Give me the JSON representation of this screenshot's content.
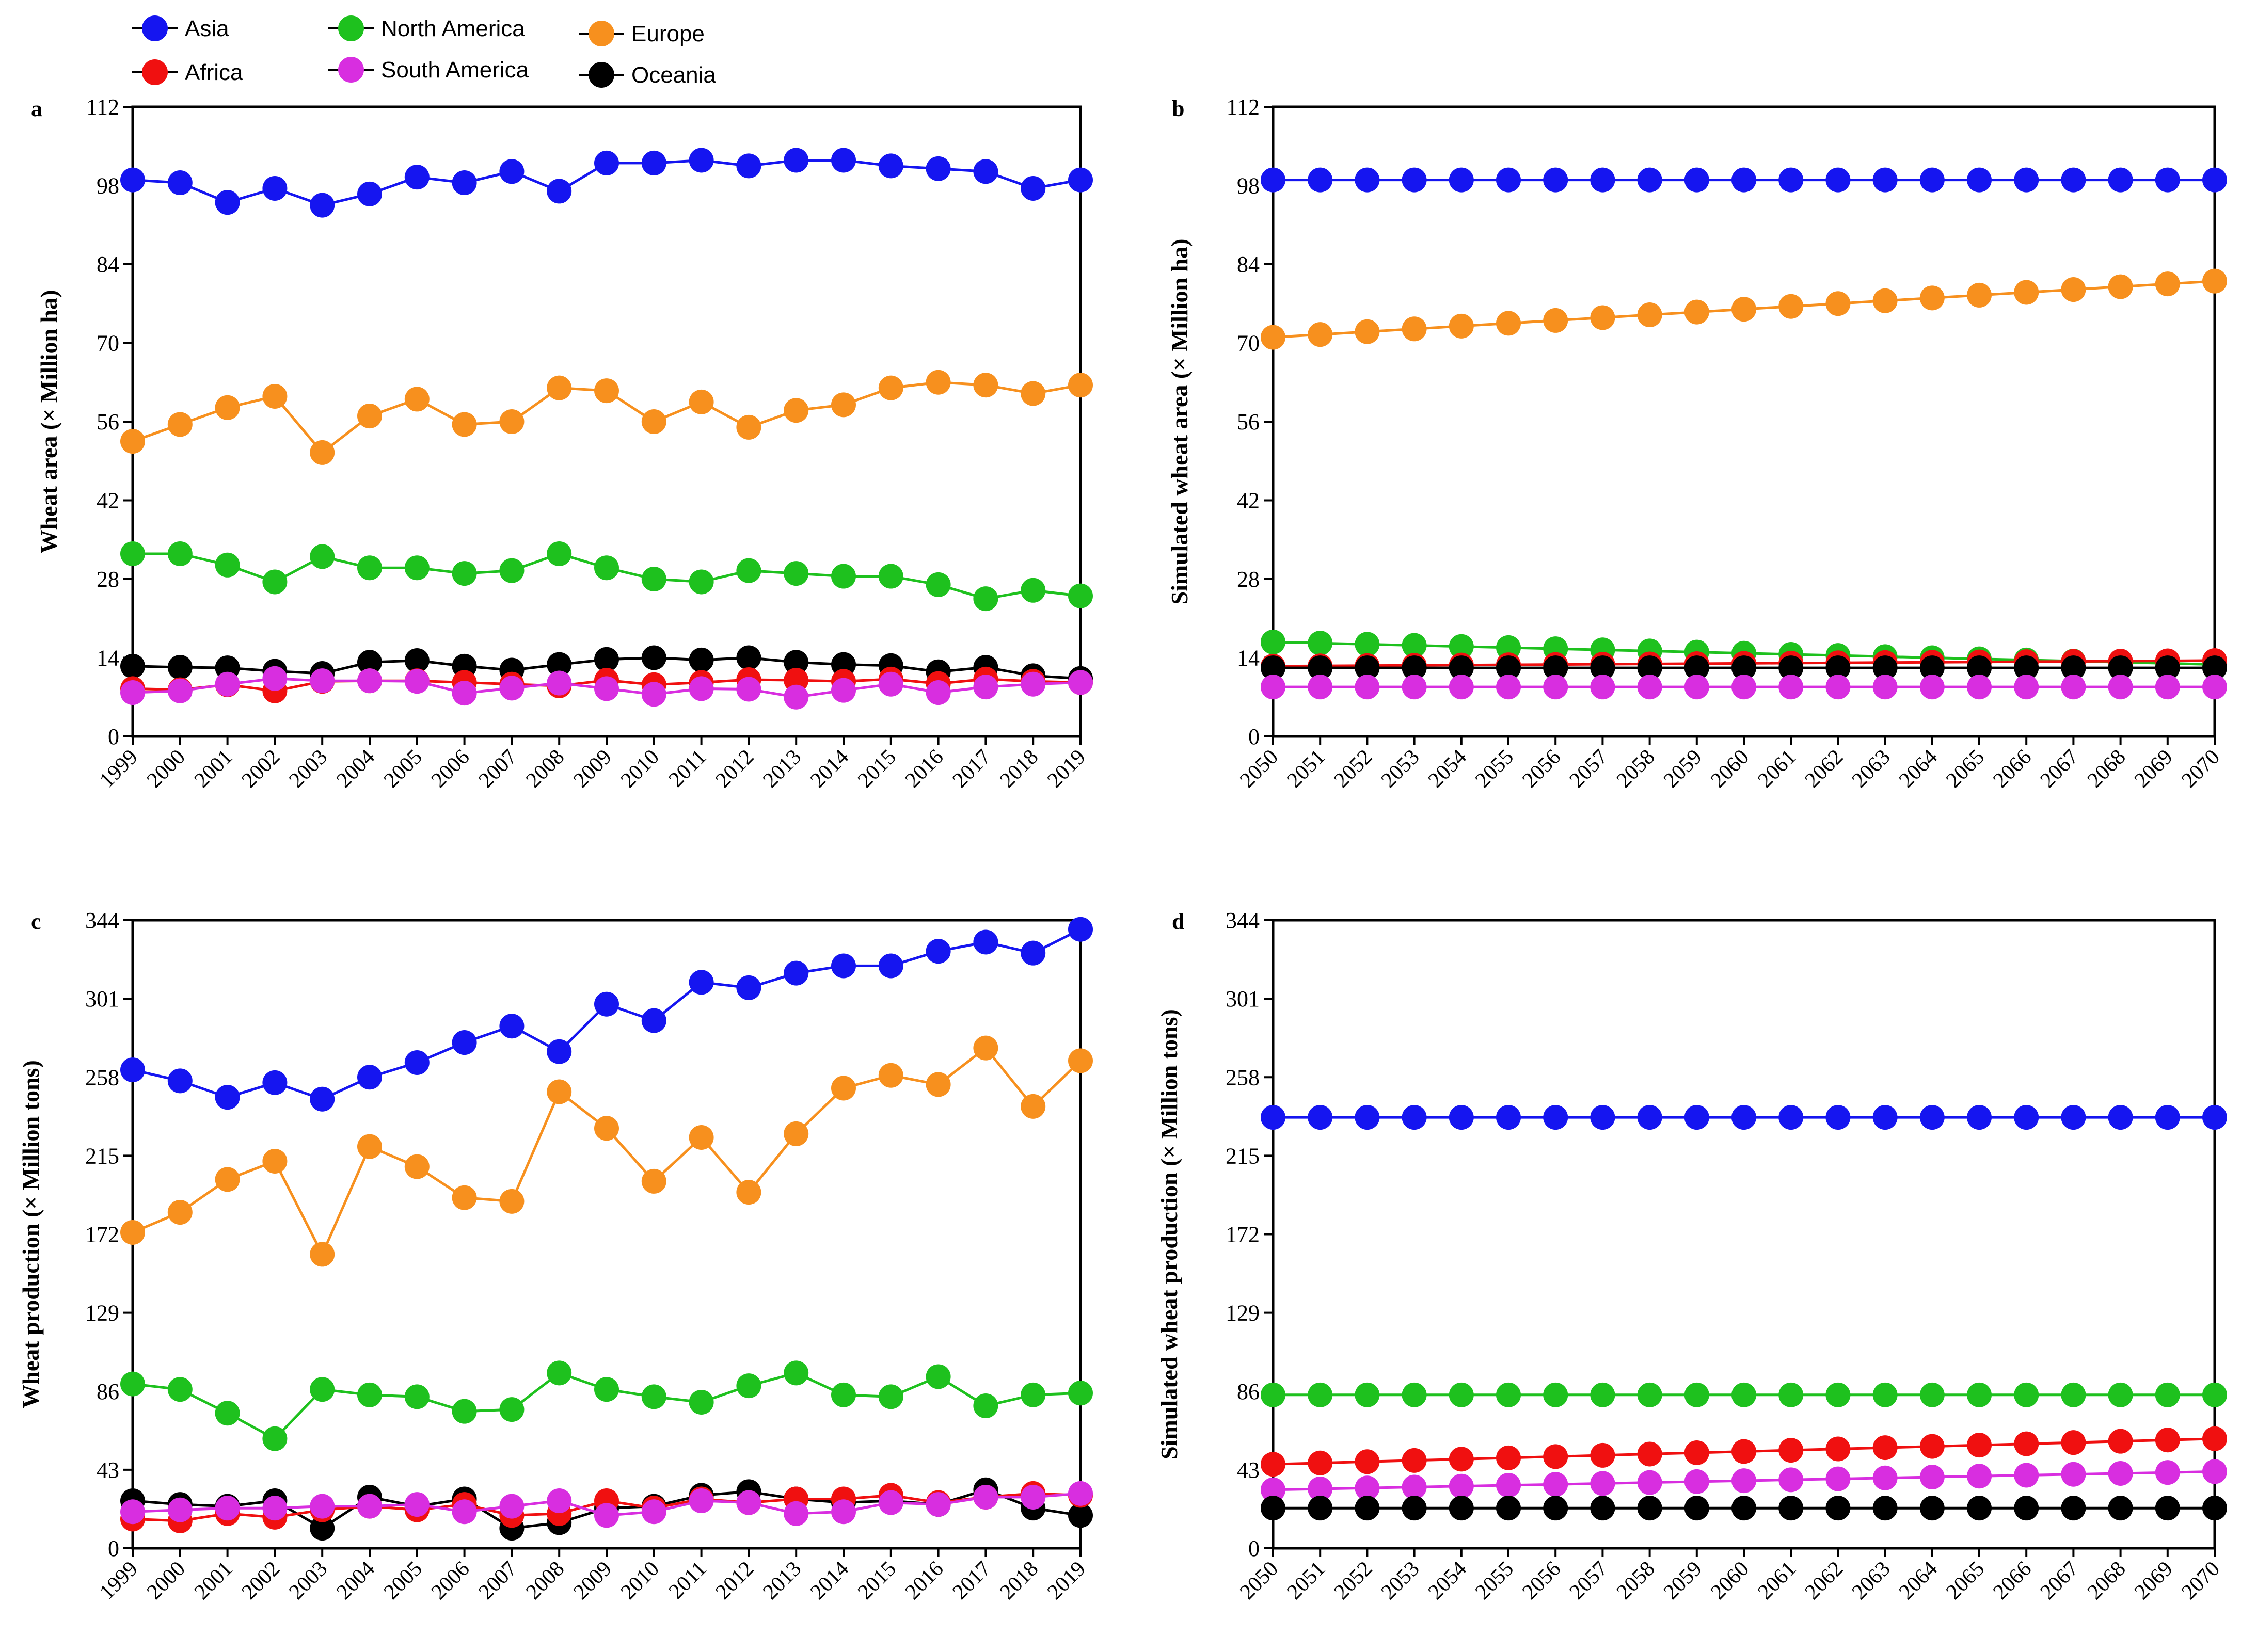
{
  "legend": [
    {
      "name": "Asia",
      "color": "#1515f0"
    },
    {
      "name": "Africa",
      "color": "#f01010"
    },
    {
      "name": "North America",
      "color": "#1ec11e"
    },
    {
      "name": "South America",
      "color": "#d82ee0"
    },
    {
      "name": "Europe",
      "color": "#f7901e"
    },
    {
      "name": "Oceania",
      "color": "#000000"
    }
  ],
  "chart_data": [
    {
      "type": "line",
      "panel": "a",
      "title": "",
      "xlabel": "",
      "ylabel": "Wheat  area (× Million ha)",
      "ylim": [
        0,
        112
      ],
      "yticks": [
        0,
        14,
        28,
        42,
        56,
        70,
        84,
        98,
        112
      ],
      "categories": [
        "1999",
        "2000",
        "2001",
        "2002",
        "2003",
        "2004",
        "2005",
        "2006",
        "2007",
        "2008",
        "2009",
        "2010",
        "2011",
        "2012",
        "2013",
        "2014",
        "2015",
        "2016",
        "2017",
        "2018",
        "2019"
      ],
      "series": [
        {
          "name": "Asia",
          "values": [
            99,
            98.5,
            95,
            97.5,
            94.5,
            96.5,
            99.5,
            98.5,
            100.5,
            97,
            102,
            102,
            102.5,
            101.5,
            102.5,
            102.5,
            101.5,
            101,
            100.5,
            97.5,
            99
          ]
        },
        {
          "name": "Europe",
          "values": [
            52.5,
            55.5,
            58.5,
            60.5,
            50.5,
            57,
            60,
            55.5,
            56,
            62,
            61.5,
            56,
            59.5,
            55,
            58,
            59,
            62,
            63,
            62.5,
            61,
            62.5
          ]
        },
        {
          "name": "North America",
          "values": [
            32.5,
            32.5,
            30.5,
            27.5,
            32,
            30,
            30,
            29,
            29.5,
            32.5,
            30,
            28,
            27.5,
            29.5,
            29,
            28.5,
            28.5,
            27,
            24.5,
            26,
            25
          ]
        },
        {
          "name": "Oceania",
          "values": [
            12.5,
            12.3,
            12.2,
            11.6,
            11.2,
            13.2,
            13.5,
            12.5,
            11.8,
            12.8,
            13.7,
            14,
            13.6,
            14,
            13.2,
            12.8,
            12.6,
            11.5,
            12.3,
            10.8,
            10.3
          ]
        },
        {
          "name": "Africa",
          "values": [
            8.5,
            8.3,
            9.2,
            8.1,
            9.8,
            9.9,
            9.9,
            9.6,
            9.3,
            9,
            10,
            9.2,
            9.6,
            10.1,
            10,
            9.8,
            10.2,
            9.4,
            10.2,
            9.8,
            9.6
          ]
        },
        {
          "name": "South America",
          "values": [
            7.8,
            8.1,
            9.3,
            10.3,
            9.9,
            9.9,
            9.8,
            7.7,
            8.6,
            9.5,
            8.5,
            7.5,
            8.5,
            8.4,
            7,
            8.2,
            9.3,
            7.8,
            8.8,
            9.3,
            9.6
          ]
        }
      ]
    },
    {
      "type": "line",
      "panel": "b",
      "title": "",
      "xlabel": "",
      "ylabel": "Simulated wheat  area (× Million ha)",
      "ylim": [
        0,
        112
      ],
      "yticks": [
        0,
        14,
        28,
        42,
        56,
        70,
        84,
        98,
        112
      ],
      "categories": [
        "2050",
        "2051",
        "2052",
        "2053",
        "2054",
        "2055",
        "2056",
        "2057",
        "2058",
        "2059",
        "2060",
        "2061",
        "2062",
        "2063",
        "2064",
        "2065",
        "2066",
        "2067",
        "2068",
        "2069",
        "2070"
      ],
      "series": [
        {
          "name": "Asia",
          "values": [
            99,
            99,
            99,
            99,
            99,
            99,
            99,
            99,
            99,
            99,
            99,
            99,
            99,
            99,
            99,
            99,
            99,
            99,
            99,
            99,
            99
          ]
        },
        {
          "name": "Europe",
          "values": [
            71,
            71.5,
            72,
            72.5,
            73,
            73.5,
            74,
            74.5,
            75,
            75.5,
            76,
            76.5,
            77,
            77.5,
            78,
            78.5,
            79,
            79.5,
            80,
            80.5,
            81
          ]
        },
        {
          "name": "North America",
          "values": [
            16.8,
            16.6,
            16.4,
            16.2,
            16,
            15.8,
            15.6,
            15.4,
            15.2,
            15,
            14.8,
            14.6,
            14.4,
            14.2,
            14,
            13.8,
            13.6,
            13.4,
            13.2,
            13,
            12.8
          ]
        },
        {
          "name": "Africa",
          "values": [
            12.5,
            12.55,
            12.6,
            12.65,
            12.7,
            12.75,
            12.8,
            12.85,
            12.9,
            12.95,
            13,
            13.05,
            13.1,
            13.15,
            13.2,
            13.25,
            13.3,
            13.35,
            13.4,
            13.45,
            13.5
          ]
        },
        {
          "name": "Oceania",
          "values": [
            12.2,
            12.2,
            12.2,
            12.2,
            12.2,
            12.2,
            12.2,
            12.2,
            12.2,
            12.2,
            12.2,
            12.2,
            12.2,
            12.2,
            12.2,
            12.2,
            12.2,
            12.2,
            12.2,
            12.2,
            12.2
          ]
        },
        {
          "name": "South America",
          "values": [
            8.8,
            8.8,
            8.8,
            8.8,
            8.8,
            8.8,
            8.8,
            8.8,
            8.8,
            8.8,
            8.8,
            8.8,
            8.8,
            8.8,
            8.8,
            8.8,
            8.8,
            8.8,
            8.8,
            8.8,
            8.8
          ]
        }
      ]
    },
    {
      "type": "line",
      "panel": "c",
      "title": "",
      "xlabel": "",
      "ylabel": "Wheat production (× Million tons)",
      "ylim": [
        0,
        344
      ],
      "yticks": [
        0,
        43,
        86,
        129,
        172,
        215,
        258,
        301,
        344
      ],
      "categories": [
        "1999",
        "2000",
        "2001",
        "2002",
        "2003",
        "2004",
        "2005",
        "2006",
        "2007",
        "2008",
        "2009",
        "2010",
        "2011",
        "2012",
        "2013",
        "2014",
        "2015",
        "2016",
        "2017",
        "2018",
        "2019"
      ],
      "series": [
        {
          "name": "Asia",
          "values": [
            262,
            256,
            247,
            255,
            246,
            258,
            266,
            277,
            286,
            272,
            298,
            289,
            310,
            307,
            315,
            319,
            319,
            327,
            332,
            326,
            339
          ]
        },
        {
          "name": "Europe",
          "values": [
            173,
            184,
            202,
            212,
            161,
            220,
            209,
            192,
            190,
            250,
            230,
            201,
            225,
            195,
            227,
            252,
            259,
            254,
            274,
            242,
            267
          ]
        },
        {
          "name": "North America",
          "values": [
            90,
            87,
            74,
            60,
            87,
            84,
            83,
            75,
            76,
            96,
            87,
            83,
            80,
            89,
            96,
            84,
            83,
            94,
            78,
            84,
            85
          ]
        },
        {
          "name": "Oceania",
          "values": [
            26,
            24,
            23,
            26,
            11,
            28,
            23,
            27,
            11,
            14,
            22,
            23,
            29,
            31,
            27,
            25,
            26,
            24,
            32,
            22,
            18
          ]
        },
        {
          "name": "Africa",
          "values": [
            16,
            15,
            19,
            17,
            21,
            23,
            21,
            24,
            18,
            19,
            26,
            22,
            27,
            25,
            27,
            27,
            29,
            25,
            28,
            30,
            29
          ]
        },
        {
          "name": "South America",
          "values": [
            20,
            21,
            22,
            22,
            23,
            23,
            24,
            20,
            23,
            26,
            18,
            20,
            26,
            25,
            19,
            20,
            25,
            24,
            28,
            28,
            30
          ]
        }
      ]
    },
    {
      "type": "line",
      "panel": "d",
      "title": "",
      "xlabel": "",
      "ylabel": "Simulated wheat production (× Million tons)",
      "ylim": [
        0,
        344
      ],
      "yticks": [
        0,
        43,
        86,
        129,
        172,
        215,
        258,
        301,
        344
      ],
      "categories": [
        "2050",
        "2051",
        "2052",
        "2053",
        "2054",
        "2055",
        "2056",
        "2057",
        "2058",
        "2059",
        "2060",
        "2061",
        "2062",
        "2063",
        "2064",
        "2065",
        "2066",
        "2067",
        "2068",
        "2069",
        "2070"
      ],
      "series": [
        {
          "name": "Asia",
          "values": [
            236,
            236,
            236,
            236,
            236,
            236,
            236,
            236,
            236,
            236,
            236,
            236,
            236,
            236,
            236,
            236,
            236,
            236,
            236,
            236,
            236
          ]
        },
        {
          "name": "North America",
          "values": [
            84,
            84,
            84,
            84,
            84,
            84,
            84,
            84,
            84,
            84,
            84,
            84,
            84,
            84,
            84,
            84,
            84,
            84,
            84,
            84,
            84
          ]
        },
        {
          "name": "Africa",
          "values": [
            46,
            46.7,
            47.4,
            48.1,
            48.8,
            49.5,
            50.2,
            50.9,
            51.6,
            52.3,
            53,
            53.7,
            54.4,
            55.1,
            55.8,
            56.5,
            57.2,
            57.9,
            58.6,
            59.3,
            60
          ]
        },
        {
          "name": "South America",
          "values": [
            32,
            32.5,
            33,
            33.5,
            34,
            34.5,
            35,
            35.5,
            36,
            36.5,
            37,
            37.5,
            38,
            38.5,
            39,
            39.5,
            40,
            40.5,
            41,
            41.5,
            42
          ]
        },
        {
          "name": "Oceania",
          "values": [
            22,
            22,
            22,
            22,
            22,
            22,
            22,
            22,
            22,
            22,
            22,
            22,
            22,
            22,
            22,
            22,
            22,
            22,
            22,
            22,
            22
          ]
        }
      ]
    }
  ]
}
